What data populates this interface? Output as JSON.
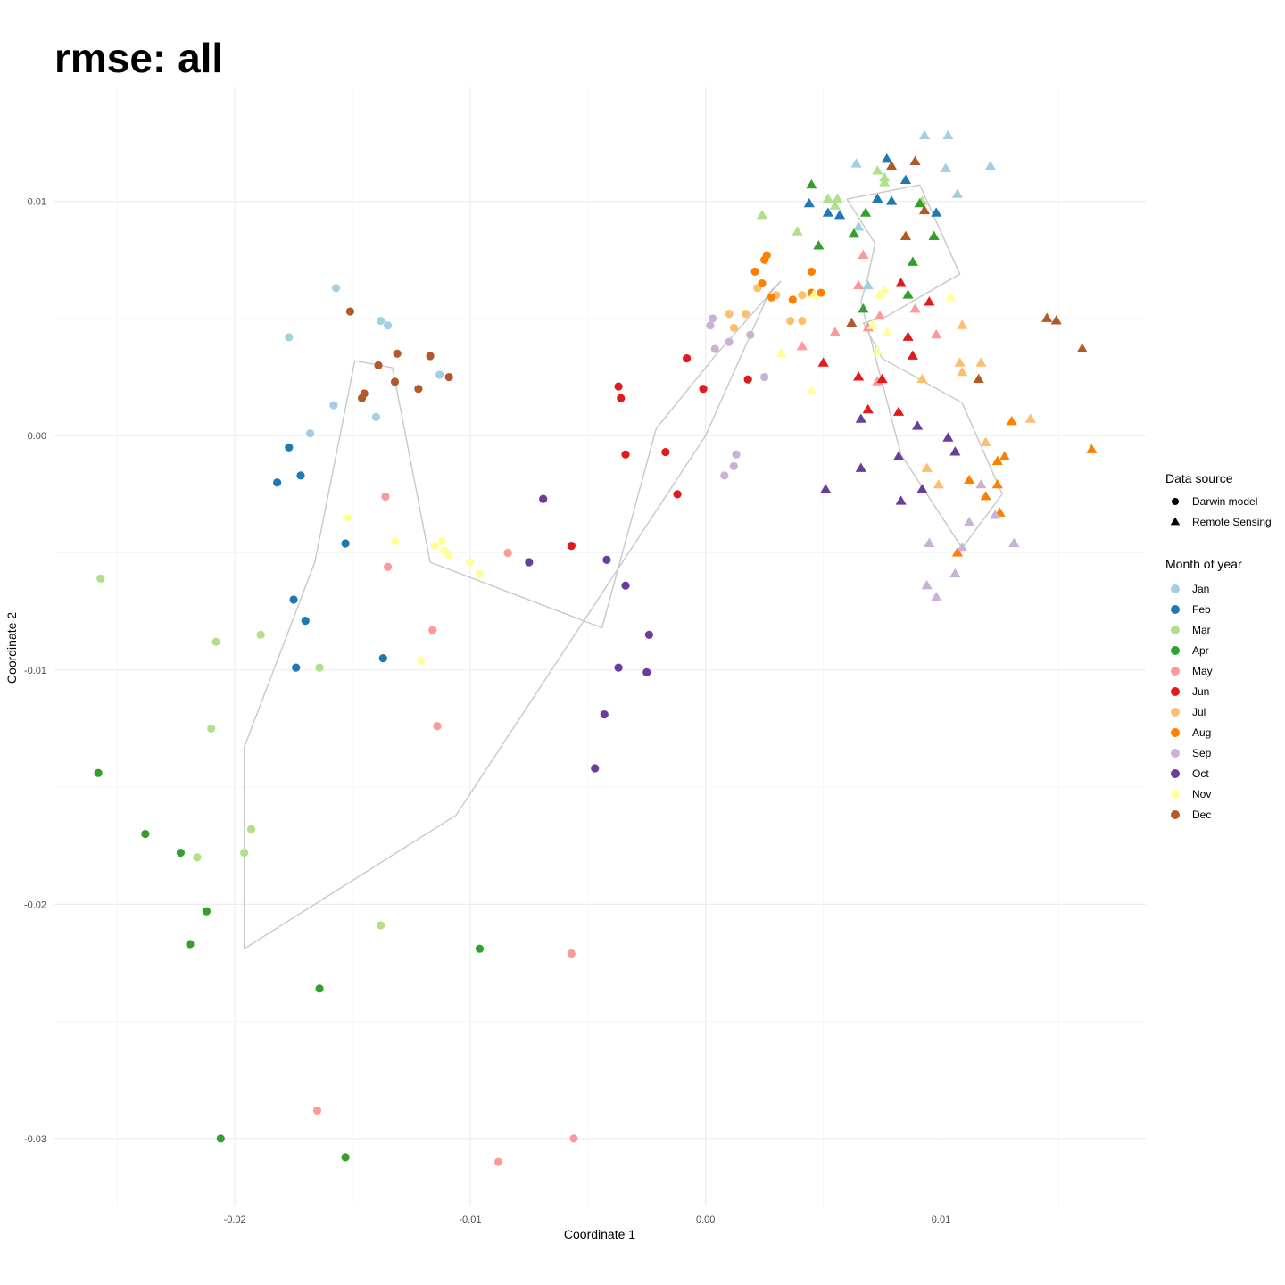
{
  "chart_data": {
    "type": "scatter",
    "title": "rmse: all",
    "xlabel": "Coordinate 1",
    "ylabel": "Coordinate 2",
    "xlim": [
      -0.0277,
      0.0187
    ],
    "ylim": [
      -0.0329,
      0.0149
    ],
    "x_ticks": [
      -0.02,
      -0.01,
      0.0,
      0.01
    ],
    "x_tick_labels": [
      "-0.02",
      "-0.01",
      "0.00",
      "0.01"
    ],
    "y_ticks": [
      -0.03,
      -0.02,
      -0.01,
      0.0,
      0.01
    ],
    "y_tick_labels": [
      "-0.03",
      "-0.02",
      "-0.01",
      "0.00",
      "0.01"
    ],
    "grid": true,
    "legend": {
      "placement": "right",
      "shape_title": "Data source",
      "shapes": [
        {
          "name": "Darwin model",
          "shape": "circle"
        },
        {
          "name": "Remote Sensing",
          "shape": "triangle"
        }
      ],
      "color_title": "Month of year",
      "months": [
        {
          "name": "Jan",
          "color": "#A6CEE3"
        },
        {
          "name": "Feb",
          "color": "#1F78B4"
        },
        {
          "name": "Mar",
          "color": "#B2DF8A"
        },
        {
          "name": "Apr",
          "color": "#33A02C"
        },
        {
          "name": "May",
          "color": "#FB9A99"
        },
        {
          "name": "Jun",
          "color": "#E31A1C"
        },
        {
          "name": "Jul",
          "color": "#FDBF6F"
        },
        {
          "name": "Aug",
          "color": "#FF7F00"
        },
        {
          "name": "Sep",
          "color": "#CAB2D6"
        },
        {
          "name": "Oct",
          "color": "#6A3D9A"
        },
        {
          "name": "Nov",
          "color": "#FFFF99"
        },
        {
          "name": "Dec",
          "color": "#B15928"
        }
      ]
    },
    "series": [
      {
        "source": "Darwin model",
        "month": "Jan",
        "points": [
          [
            -0.0157,
            0.0063
          ],
          [
            -0.0177,
            0.0042
          ],
          [
            -0.0138,
            0.0049
          ],
          [
            -0.0135,
            0.0047
          ],
          [
            -0.0113,
            0.0026
          ],
          [
            -0.0158,
            0.0013
          ],
          [
            -0.0168,
            0.0001
          ],
          [
            -0.014,
            0.0008
          ]
        ]
      },
      {
        "source": "Darwin model",
        "month": "Feb",
        "points": [
          [
            -0.0177,
            -0.0005
          ],
          [
            -0.0182,
            -0.002
          ],
          [
            -0.0172,
            -0.0017
          ],
          [
            -0.0153,
            -0.0046
          ],
          [
            -0.0175,
            -0.007
          ],
          [
            -0.017,
            -0.0079
          ],
          [
            -0.0174,
            -0.0099
          ],
          [
            -0.0137,
            -0.0095
          ]
        ]
      },
      {
        "source": "Darwin model",
        "month": "Mar",
        "points": [
          [
            -0.0257,
            -0.0061
          ],
          [
            -0.0208,
            -0.0088
          ],
          [
            -0.0189,
            -0.0085
          ],
          [
            -0.0164,
            -0.0099
          ],
          [
            -0.021,
            -0.0125
          ],
          [
            -0.0193,
            -0.0168
          ],
          [
            -0.0216,
            -0.018
          ],
          [
            -0.0196,
            -0.0178
          ],
          [
            -0.0138,
            -0.0209
          ]
        ]
      },
      {
        "source": "Darwin model",
        "month": "Apr",
        "points": [
          [
            -0.0258,
            -0.0144
          ],
          [
            -0.0238,
            -0.017
          ],
          [
            -0.0223,
            -0.0178
          ],
          [
            -0.0212,
            -0.0203
          ],
          [
            -0.0219,
            -0.0217
          ],
          [
            -0.0164,
            -0.0236
          ],
          [
            -0.0206,
            -0.03
          ],
          [
            -0.0153,
            -0.0308
          ],
          [
            -0.0096,
            -0.0219
          ]
        ]
      },
      {
        "source": "Darwin model",
        "month": "May",
        "points": [
          [
            -0.0136,
            -0.0026
          ],
          [
            -0.0135,
            -0.0056
          ],
          [
            -0.0116,
            -0.0083
          ],
          [
            -0.0114,
            -0.0124
          ],
          [
            -0.0084,
            -0.005
          ],
          [
            -0.0057,
            -0.0221
          ],
          [
            -0.0165,
            -0.0288
          ],
          [
            -0.0088,
            -0.031
          ],
          [
            -0.0056,
            -0.03
          ]
        ]
      },
      {
        "source": "Darwin model",
        "month": "Jun",
        "points": [
          [
            -0.0008,
            0.0033
          ],
          [
            -0.0037,
            0.0021
          ],
          [
            -0.0036,
            0.0016
          ],
          [
            -0.0034,
            -0.0008
          ],
          [
            -0.0017,
            -0.0007
          ],
          [
            -0.0001,
            0.002
          ],
          [
            -0.0012,
            -0.0025
          ],
          [
            -0.0057,
            -0.0047
          ],
          [
            0.0018,
            0.0024
          ]
        ]
      },
      {
        "source": "Darwin model",
        "month": "Jul",
        "points": [
          [
            0.001,
            0.0052
          ],
          [
            0.0017,
            0.0052
          ],
          [
            0.0012,
            0.0046
          ],
          [
            0.0022,
            0.0063
          ],
          [
            0.003,
            0.006
          ],
          [
            0.0036,
            0.0049
          ],
          [
            0.0041,
            0.006
          ],
          [
            0.0041,
            0.0049
          ]
        ]
      },
      {
        "source": "Darwin model",
        "month": "Aug",
        "points": [
          [
            0.0021,
            0.007
          ],
          [
            0.0025,
            0.0075
          ],
          [
            0.0026,
            0.0077
          ],
          [
            0.0024,
            0.0065
          ],
          [
            0.0028,
            0.0059
          ],
          [
            0.0037,
            0.0058
          ],
          [
            0.0045,
            0.007
          ],
          [
            0.0045,
            0.0061
          ],
          [
            0.0049,
            0.0061
          ]
        ]
      },
      {
        "source": "Darwin model",
        "month": "Sep",
        "points": [
          [
            0.0003,
            0.005
          ],
          [
            0.0002,
            0.0047
          ],
          [
            0.0004,
            0.0037
          ],
          [
            0.001,
            0.004
          ],
          [
            0.0019,
            0.0043
          ],
          [
            0.0025,
            0.0025
          ],
          [
            0.0013,
            -0.0008
          ],
          [
            0.0012,
            -0.0013
          ],
          [
            0.0008,
            -0.0017
          ]
        ]
      },
      {
        "source": "Darwin model",
        "month": "Oct",
        "points": [
          [
            -0.0069,
            -0.0027
          ],
          [
            -0.0075,
            -0.0054
          ],
          [
            -0.0042,
            -0.0053
          ],
          [
            -0.0034,
            -0.0064
          ],
          [
            -0.0024,
            -0.0085
          ],
          [
            -0.0037,
            -0.0099
          ],
          [
            -0.0025,
            -0.0101
          ],
          [
            -0.0043,
            -0.0119
          ],
          [
            -0.0047,
            -0.0142
          ]
        ]
      },
      {
        "source": "Darwin model",
        "month": "Nov",
        "points": [
          [
            -0.0152,
            -0.0035
          ],
          [
            -0.0132,
            -0.0045
          ],
          [
            -0.0115,
            -0.0047
          ],
          [
            -0.0112,
            -0.0045
          ],
          [
            -0.0111,
            -0.0049
          ],
          [
            -0.0109,
            -0.0051
          ],
          [
            -0.01,
            -0.0054
          ],
          [
            -0.0096,
            -0.0059
          ],
          [
            -0.0121,
            -0.0096
          ]
        ]
      },
      {
        "source": "Darwin model",
        "month": "Dec",
        "points": [
          [
            -0.0151,
            0.0053
          ],
          [
            -0.0139,
            0.003
          ],
          [
            -0.0131,
            0.0035
          ],
          [
            -0.0145,
            0.0018
          ],
          [
            -0.0146,
            0.0016
          ],
          [
            -0.0132,
            0.0023
          ],
          [
            -0.0117,
            0.0034
          ],
          [
            -0.0109,
            0.0025
          ],
          [
            -0.0122,
            0.002
          ]
        ]
      },
      {
        "source": "Remote Sensing",
        "month": "Jan",
        "points": [
          [
            0.0093,
            0.0128
          ],
          [
            0.0103,
            0.0128
          ],
          [
            0.0064,
            0.0116
          ],
          [
            0.0102,
            0.0114
          ],
          [
            0.0121,
            0.0115
          ],
          [
            0.0107,
            0.0103
          ],
          [
            0.0065,
            0.0089
          ],
          [
            0.0069,
            0.0064
          ]
        ]
      },
      {
        "source": "Remote Sensing",
        "month": "Feb",
        "points": [
          [
            0.0077,
            0.0118
          ],
          [
            0.0085,
            0.0109
          ],
          [
            0.0073,
            0.0101
          ],
          [
            0.0079,
            0.01
          ],
          [
            0.0044,
            0.0099
          ],
          [
            0.0052,
            0.0095
          ],
          [
            0.0057,
            0.0094
          ],
          [
            0.0098,
            0.0095
          ]
        ]
      },
      {
        "source": "Remote Sensing",
        "month": "Mar",
        "points": [
          [
            0.0073,
            0.0113
          ],
          [
            0.0076,
            0.0108
          ],
          [
            0.0076,
            0.011
          ],
          [
            0.0052,
            0.0101
          ],
          [
            0.0056,
            0.0101
          ],
          [
            0.0055,
            0.0098
          ],
          [
            0.0024,
            0.0094
          ],
          [
            0.0039,
            0.0087
          ],
          [
            0.0092,
            0.01
          ]
        ]
      },
      {
        "source": "Remote Sensing",
        "month": "Apr",
        "points": [
          [
            0.0045,
            0.0107
          ],
          [
            0.0068,
            0.0095
          ],
          [
            0.0091,
            0.0099
          ],
          [
            0.0063,
            0.0086
          ],
          [
            0.0048,
            0.0081
          ],
          [
            0.0097,
            0.0085
          ],
          [
            0.0088,
            0.0074
          ],
          [
            0.0086,
            0.006
          ],
          [
            0.0067,
            0.0054
          ]
        ]
      },
      {
        "source": "Remote Sensing",
        "month": "May",
        "points": [
          [
            0.0067,
            0.0077
          ],
          [
            0.0065,
            0.0064
          ],
          [
            0.0074,
            0.0051
          ],
          [
            0.0089,
            0.0054
          ],
          [
            0.0069,
            0.0046
          ],
          [
            0.0055,
            0.0044
          ],
          [
            0.0041,
            0.0038
          ],
          [
            0.0098,
            0.0043
          ],
          [
            0.0073,
            0.0023
          ]
        ]
      },
      {
        "source": "Remote Sensing",
        "month": "Jun",
        "points": [
          [
            0.0083,
            0.0065
          ],
          [
            0.0095,
            0.0057
          ],
          [
            0.0065,
            0.0025
          ],
          [
            0.0075,
            0.0024
          ],
          [
            0.0086,
            0.0042
          ],
          [
            0.0088,
            0.0034
          ],
          [
            0.005,
            0.0031
          ],
          [
            0.0069,
            0.0011
          ],
          [
            0.0082,
            0.001
          ]
        ]
      },
      {
        "source": "Remote Sensing",
        "month": "Jul",
        "points": [
          [
            0.0109,
            0.0047
          ],
          [
            0.0108,
            0.0031
          ],
          [
            0.0109,
            0.0027
          ],
          [
            0.0117,
            0.0031
          ],
          [
            0.0092,
            0.0024
          ],
          [
            0.0138,
            0.0007
          ],
          [
            0.0119,
            -0.0003
          ],
          [
            0.0094,
            -0.0014
          ],
          [
            0.0099,
            -0.0021
          ]
        ]
      },
      {
        "source": "Remote Sensing",
        "month": "Aug",
        "points": [
          [
            0.0164,
            -0.0006
          ],
          [
            0.013,
            0.0006
          ],
          [
            0.0127,
            -0.0009
          ],
          [
            0.0124,
            -0.0011
          ],
          [
            0.0112,
            -0.0019
          ],
          [
            0.0124,
            -0.0021
          ],
          [
            0.0119,
            -0.0026
          ],
          [
            0.0125,
            -0.0033
          ],
          [
            0.0107,
            -0.005
          ]
        ]
      },
      {
        "source": "Remote Sensing",
        "month": "Sep",
        "points": [
          [
            0.0117,
            -0.0021
          ],
          [
            0.0112,
            -0.0037
          ],
          [
            0.0123,
            -0.0034
          ],
          [
            0.0131,
            -0.0046
          ],
          [
            0.0095,
            -0.0046
          ],
          [
            0.0109,
            -0.0048
          ],
          [
            0.0094,
            -0.0064
          ],
          [
            0.0106,
            -0.0059
          ],
          [
            0.0098,
            -0.0069
          ]
        ]
      },
      {
        "source": "Remote Sensing",
        "month": "Oct",
        "points": [
          [
            0.009,
            0.0004
          ],
          [
            0.0103,
            -0.0001
          ],
          [
            0.0106,
            -0.0007
          ],
          [
            0.0082,
            -0.0009
          ],
          [
            0.0066,
            0.0007
          ],
          [
            0.0066,
            -0.0014
          ],
          [
            0.0051,
            -0.0023
          ],
          [
            0.0092,
            -0.0023
          ],
          [
            0.0083,
            -0.0028
          ]
        ]
      },
      {
        "source": "Remote Sensing",
        "month": "Nov",
        "points": [
          [
            0.0076,
            0.0062
          ],
          [
            0.0074,
            0.006
          ],
          [
            0.0071,
            0.0047
          ],
          [
            0.0077,
            0.0044
          ],
          [
            0.0104,
            0.0059
          ],
          [
            0.0073,
            0.0036
          ],
          [
            0.0046,
            0.006
          ],
          [
            0.0032,
            0.0035
          ],
          [
            0.0045,
            0.0019
          ]
        ]
      },
      {
        "source": "Remote Sensing",
        "month": "Dec",
        "points": [
          [
            0.0089,
            0.0117
          ],
          [
            0.0079,
            0.0115
          ],
          [
            0.0093,
            0.0096
          ],
          [
            0.0085,
            0.0085
          ],
          [
            0.0062,
            0.0048
          ],
          [
            0.0145,
            0.005
          ],
          [
            0.0149,
            0.0049
          ],
          [
            0.016,
            0.0037
          ],
          [
            0.0116,
            0.0024
          ]
        ]
      }
    ],
    "hulls": [
      [
        [
          -0.0196,
          -0.0219
        ],
        [
          -0.0196,
          -0.0133
        ],
        [
          -0.0166,
          -0.0054
        ],
        [
          -0.0149,
          0.0032
        ],
        [
          -0.0133,
          0.0029
        ],
        [
          -0.0117,
          -0.0054
        ],
        [
          -0.0044,
          -0.0082
        ],
        [
          -0.0021,
          0.0003
        ],
        [
          0.0004,
          0.0034
        ],
        [
          0.0032,
          0.0066
        ],
        [
          0.0027,
          0.0061
        ],
        [
          0.0,
          0.0
        ],
        [
          -0.0106,
          -0.0162
        ],
        [
          -0.0196,
          -0.0219
        ]
      ],
      [
        [
          0.006,
          0.0101
        ],
        [
          0.0091,
          0.0107
        ],
        [
          0.0108,
          0.0069
        ],
        [
          0.0077,
          0.0051
        ],
        [
          0.0067,
          0.0048
        ],
        [
          0.0075,
          0.0033
        ],
        [
          0.0109,
          0.0014
        ],
        [
          0.0126,
          -0.0025
        ],
        [
          0.0109,
          -0.0048
        ],
        [
          0.0083,
          -0.0008
        ],
        [
          0.0066,
          0.0057
        ],
        [
          0.0069,
          0.0068
        ],
        [
          0.0072,
          0.0082
        ],
        [
          0.006,
          0.0101
        ]
      ]
    ]
  }
}
